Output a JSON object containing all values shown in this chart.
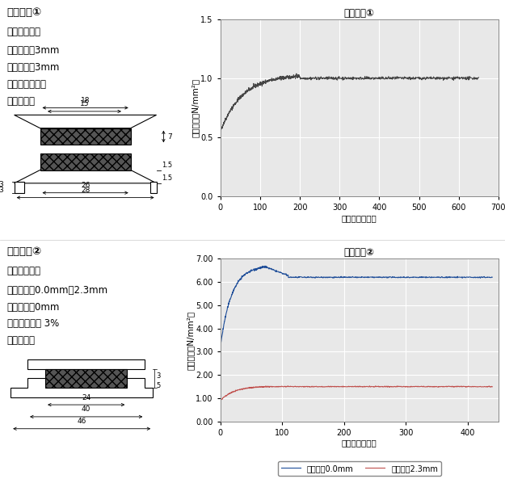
{
  "chart1": {
    "title": "試験結果①",
    "xlabel": "浸漬日数（日）",
    "ylabel": "接面応力（N/mm²）",
    "xlim": [
      0,
      700
    ],
    "ylim": [
      0.0,
      1.5
    ],
    "xticks": [
      0,
      100,
      200,
      300,
      400,
      500,
      600,
      700
    ],
    "yticks": [
      0.0,
      0.5,
      1.0,
      1.5
    ],
    "line_color": "#444444",
    "line_width": 0.7
  },
  "chart2": {
    "title": "試験結果②",
    "xlabel": "浸漬日数（日）",
    "ylabel": "接面応力（N/mm²）",
    "xlim": [
      0,
      450
    ],
    "ylim": [
      0.0,
      7.0
    ],
    "xticks": [
      0,
      100,
      200,
      300,
      400
    ],
    "yticks": [
      0.0,
      1.0,
      2.0,
      3.0,
      4.0,
      5.0,
      6.0,
      7.0
    ],
    "line1_color": "#1f4e99",
    "line2_color": "#c0504d",
    "line1_label": "目開き量0.0mm",
    "line2_label": "目開き量2.3mm",
    "line_width": 0.8
  },
  "text_left1_lines": [
    "試験結果①",
    "＜試験条件＞",
    "目開き量：3mm",
    "目違い量：3mm",
    "試験水：精製水",
    "試験治具："
  ],
  "text_left2_lines": [
    "試験結果②",
    "＜試験条件＞",
    "目開き量：0.0mm、2.3mm",
    "目違い量：0mm",
    "試験水：塩水 3%",
    "試験治具："
  ],
  "bg_color": "#ffffff",
  "plot_bg": "#e8e8e8",
  "grid_color": "#ffffff"
}
